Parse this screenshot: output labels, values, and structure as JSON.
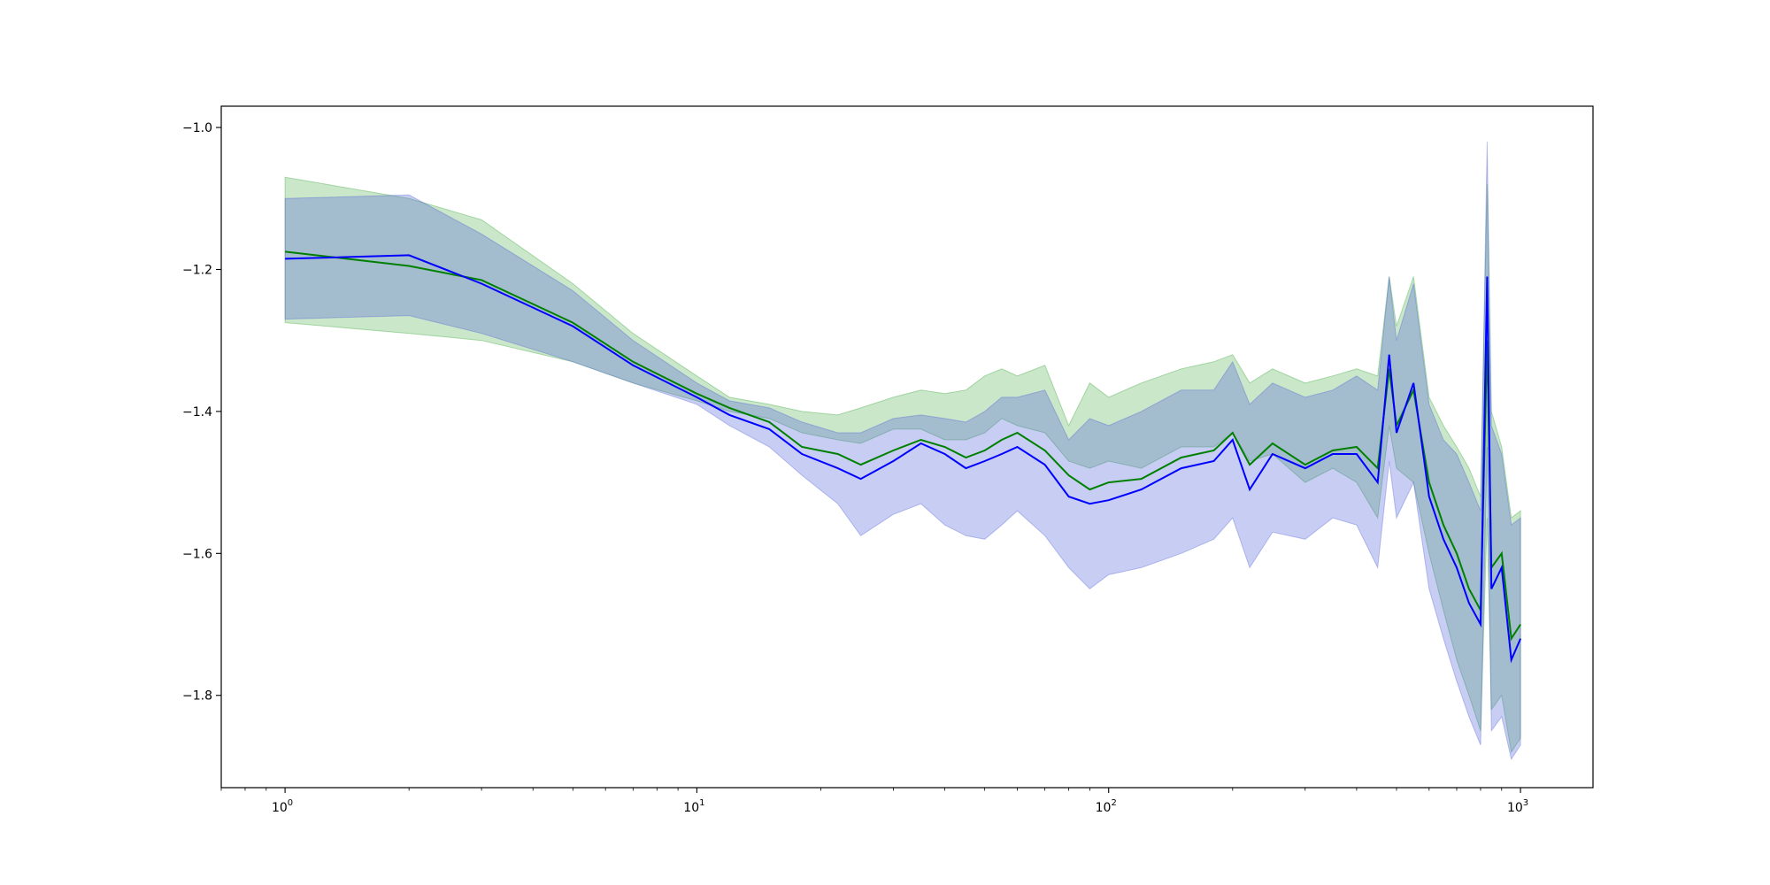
{
  "chart_data": {
    "type": "line",
    "title": "",
    "xlabel": "",
    "ylabel": "",
    "xscale": "log",
    "xlim": [
      0.7,
      1500
    ],
    "ylim": [
      -1.93,
      -0.97
    ],
    "grid": false,
    "legend": "none",
    "x_major_ticks": [
      1,
      10,
      100,
      1000
    ],
    "x_tick_labels": [
      {
        "base": "10",
        "exp": "0"
      },
      {
        "base": "10",
        "exp": "1"
      },
      {
        "base": "10",
        "exp": "2"
      },
      {
        "base": "10",
        "exp": "3"
      }
    ],
    "y_ticks": [
      -1.0,
      -1.2,
      -1.4,
      -1.6,
      -1.8
    ],
    "y_tick_labels": [
      "−1.0",
      "−1.2",
      "−1.4",
      "−1.6",
      "−1.8"
    ],
    "x": [
      1,
      2,
      3,
      5,
      7,
      10,
      12,
      15,
      18,
      22,
      25,
      30,
      35,
      40,
      45,
      50,
      55,
      60,
      70,
      80,
      90,
      100,
      120,
      150,
      180,
      200,
      220,
      250,
      300,
      350,
      400,
      450,
      480,
      500,
      550,
      600,
      650,
      700,
      750,
      800,
      830,
      850,
      900,
      950,
      1000
    ],
    "series": [
      {
        "color": "#008000",
        "band_color": "#2ca02c",
        "mean": [
          -1.175,
          -1.195,
          -1.215,
          -1.275,
          -1.33,
          -1.375,
          -1.395,
          -1.415,
          -1.45,
          -1.46,
          -1.475,
          -1.455,
          -1.44,
          -1.45,
          -1.465,
          -1.455,
          -1.44,
          -1.43,
          -1.455,
          -1.49,
          -1.51,
          -1.5,
          -1.495,
          -1.465,
          -1.455,
          -1.43,
          -1.475,
          -1.445,
          -1.475,
          -1.455,
          -1.45,
          -1.48,
          -1.34,
          -1.42,
          -1.37,
          -1.5,
          -1.56,
          -1.6,
          -1.65,
          -1.68,
          -1.3,
          -1.62,
          -1.6,
          -1.72,
          -1.7
        ],
        "lower": [
          -1.275,
          -1.29,
          -1.3,
          -1.33,
          -1.36,
          -1.385,
          -1.4,
          -1.41,
          -1.43,
          -1.44,
          -1.445,
          -1.425,
          -1.425,
          -1.44,
          -1.44,
          -1.43,
          -1.41,
          -1.42,
          -1.43,
          -1.47,
          -1.48,
          -1.47,
          -1.48,
          -1.45,
          -1.45,
          -1.43,
          -1.47,
          -1.46,
          -1.5,
          -1.48,
          -1.5,
          -1.55,
          -1.42,
          -1.48,
          -1.5,
          -1.6,
          -1.68,
          -1.75,
          -1.8,
          -1.85,
          -1.55,
          -1.82,
          -1.8,
          -1.88,
          -1.86
        ],
        "upper": [
          -1.07,
          -1.1,
          -1.13,
          -1.22,
          -1.29,
          -1.35,
          -1.38,
          -1.39,
          -1.4,
          -1.405,
          -1.395,
          -1.38,
          -1.37,
          -1.375,
          -1.37,
          -1.35,
          -1.34,
          -1.35,
          -1.335,
          -1.42,
          -1.36,
          -1.38,
          -1.36,
          -1.34,
          -1.33,
          -1.32,
          -1.36,
          -1.34,
          -1.36,
          -1.35,
          -1.34,
          -1.35,
          -1.21,
          -1.28,
          -1.21,
          -1.38,
          -1.42,
          -1.45,
          -1.48,
          -1.52,
          -1.08,
          -1.4,
          -1.45,
          -1.55,
          -1.54
        ]
      },
      {
        "color": "#0000ff",
        "band_color": "#4a5bd6",
        "mean": [
          -1.185,
          -1.18,
          -1.22,
          -1.28,
          -1.335,
          -1.38,
          -1.405,
          -1.425,
          -1.46,
          -1.48,
          -1.495,
          -1.47,
          -1.445,
          -1.46,
          -1.48,
          -1.47,
          -1.46,
          -1.45,
          -1.475,
          -1.52,
          -1.53,
          -1.525,
          -1.51,
          -1.48,
          -1.47,
          -1.44,
          -1.51,
          -1.46,
          -1.48,
          -1.46,
          -1.46,
          -1.5,
          -1.32,
          -1.43,
          -1.36,
          -1.52,
          -1.58,
          -1.62,
          -1.67,
          -1.7,
          -1.21,
          -1.65,
          -1.62,
          -1.75,
          -1.72
        ],
        "lower": [
          -1.27,
          -1.265,
          -1.29,
          -1.33,
          -1.36,
          -1.39,
          -1.42,
          -1.45,
          -1.49,
          -1.53,
          -1.575,
          -1.545,
          -1.53,
          -1.56,
          -1.575,
          -1.58,
          -1.56,
          -1.54,
          -1.575,
          -1.62,
          -1.65,
          -1.63,
          -1.62,
          -1.6,
          -1.58,
          -1.55,
          -1.62,
          -1.57,
          -1.58,
          -1.55,
          -1.56,
          -1.62,
          -1.47,
          -1.55,
          -1.5,
          -1.65,
          -1.72,
          -1.78,
          -1.83,
          -1.87,
          -1.45,
          -1.85,
          -1.83,
          -1.89,
          -1.87
        ],
        "upper": [
          -1.1,
          -1.095,
          -1.15,
          -1.23,
          -1.3,
          -1.36,
          -1.385,
          -1.395,
          -1.415,
          -1.43,
          -1.43,
          -1.41,
          -1.405,
          -1.41,
          -1.415,
          -1.4,
          -1.38,
          -1.38,
          -1.37,
          -1.44,
          -1.41,
          -1.42,
          -1.4,
          -1.37,
          -1.37,
          -1.33,
          -1.39,
          -1.36,
          -1.38,
          -1.37,
          -1.35,
          -1.37,
          -1.21,
          -1.3,
          -1.22,
          -1.39,
          -1.44,
          -1.46,
          -1.5,
          -1.54,
          -1.02,
          -1.42,
          -1.46,
          -1.56,
          -1.55
        ]
      }
    ]
  }
}
